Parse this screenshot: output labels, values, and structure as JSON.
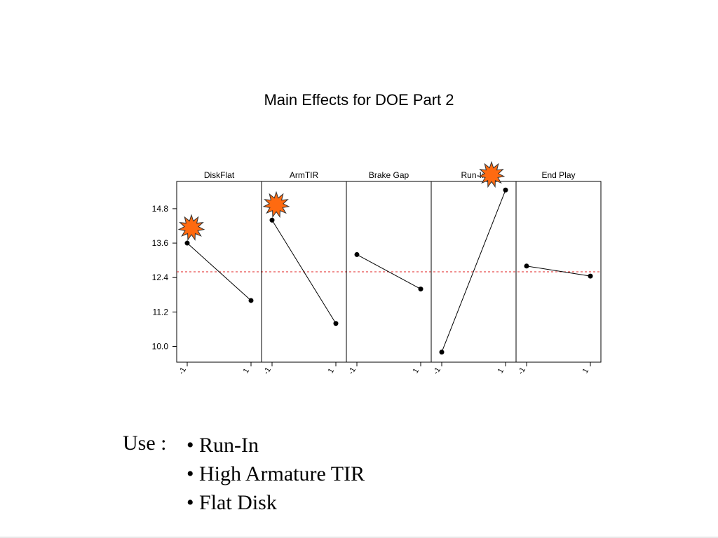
{
  "chart_data": {
    "type": "line",
    "title": "Main Effects for DOE Part 2",
    "ylim": [
      9.45,
      15.75
    ],
    "yticks": [
      10.0,
      11.2,
      12.4,
      13.6,
      14.8
    ],
    "ytick_labels": [
      "10.0",
      "11.2",
      "12.4",
      "13.6",
      "14.8"
    ],
    "grand_mean": 12.6,
    "grid": false,
    "factors": [
      {
        "name": "DiskFlat",
        "x": [
          -1,
          1
        ],
        "x_labels": [
          "-1",
          "1"
        ],
        "y": [
          13.6,
          11.6
        ],
        "highlight_level": -1
      },
      {
        "name": "ArmTIR",
        "x": [
          -1,
          1
        ],
        "x_labels": [
          "-1",
          "1"
        ],
        "y": [
          14.4,
          10.8
        ],
        "highlight_level": -1
      },
      {
        "name": "Brake Gap",
        "x": [
          -1,
          1
        ],
        "x_labels": [
          "-1",
          "1"
        ],
        "y": [
          13.2,
          12.0
        ],
        "highlight_level": null
      },
      {
        "name": "Run-In",
        "x": [
          -1,
          1
        ],
        "x_labels": [
          "-1",
          "1"
        ],
        "y": [
          9.8,
          15.45
        ],
        "highlight_level": 1
      },
      {
        "name": "End Play",
        "x": [
          -1,
          1
        ],
        "x_labels": [
          "-1",
          "1"
        ],
        "y": [
          12.8,
          12.45
        ],
        "highlight_level": null
      }
    ],
    "colors": {
      "mean_line": "#e02020",
      "highlight_fill": "#ff6a10",
      "point": "#000000"
    }
  },
  "notes": {
    "label": "Use :",
    "items": [
      "Run-In",
      "High Armature TIR",
      "Flat Disk"
    ]
  }
}
